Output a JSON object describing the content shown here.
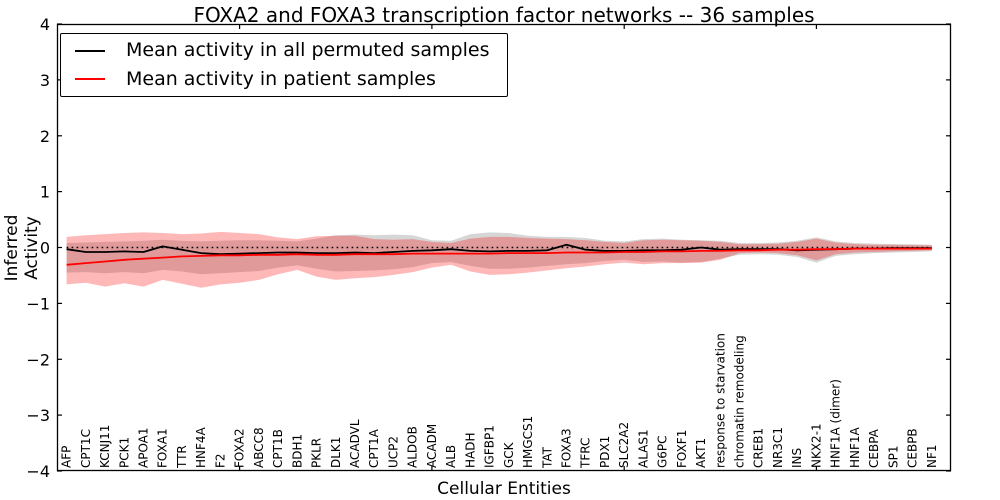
{
  "legend": {
    "items": [
      {
        "label": "Mean activity in all permuted samples",
        "color": "#000000"
      },
      {
        "label": "Mean activity in patient samples",
        "color": "#ff0000"
      }
    ]
  },
  "chart_data": {
    "type": "line",
    "title": "FOXA2 and FOXA3 transcription factor networks -- 36 samples",
    "xlabel": "Cellular Entities",
    "ylabel": "Inferred Activity",
    "ylim": [
      -4,
      4
    ],
    "yticks": [
      4,
      3,
      2,
      1,
      0,
      -1,
      -2,
      -3,
      -4
    ],
    "ytick_labels": [
      "4",
      "3",
      "2",
      "1",
      "0",
      "−1",
      "−2",
      "−3",
      "−4"
    ],
    "x_major_tick_indices": [
      9,
      19,
      29,
      39
    ],
    "grid": false,
    "legend_position": "upper left",
    "zero_reference_line": {
      "style": "dotted",
      "color": "#000000",
      "y": 0
    },
    "categories": [
      "AFP",
      "CPT1C",
      "KCNJ11",
      "PCK1",
      "APOA1",
      "FOXA1",
      "TTR",
      "HNF4A",
      "F2",
      "FOXA2",
      "ABCC8",
      "CPT1B",
      "BDH1",
      "PKLR",
      "DLK1",
      "ACADVL",
      "CPT1A",
      "UCP2",
      "ALDOB",
      "ACADM",
      "ALB",
      "HADH",
      "IGFBP1",
      "GCK",
      "HMGCS1",
      "TAT",
      "FOXA3",
      "TFRC",
      "PDX1",
      "SLC2A2",
      "ALAS1",
      "G6PC",
      "FOXF1",
      "AKT1",
      "response to starvation",
      "chromatin remodeling",
      "CREB1",
      "NR3C1",
      "INS",
      "NKX2-1",
      "HNF1A (dimer)",
      "HNF1A",
      "CEBPA",
      "SP1",
      "CEBPB",
      "NF1"
    ],
    "series": [
      {
        "name": "Mean activity in all permuted samples",
        "color": "#000000",
        "style": "solid",
        "values": [
          -0.03,
          -0.08,
          -0.08,
          -0.07,
          -0.08,
          0.02,
          -0.04,
          -0.1,
          -0.12,
          -0.11,
          -0.1,
          -0.09,
          -0.09,
          -0.1,
          -0.1,
          -0.09,
          -0.1,
          -0.08,
          -0.06,
          -0.05,
          -0.03,
          -0.06,
          -0.07,
          -0.06,
          -0.06,
          -0.05,
          0.05,
          -0.04,
          -0.06,
          -0.06,
          -0.05,
          -0.05,
          -0.04,
          0.0,
          -0.04,
          -0.03,
          -0.03,
          -0.03,
          -0.05,
          -0.04,
          -0.03,
          -0.02,
          -0.02,
          -0.01,
          -0.01,
          -0.01
        ]
      },
      {
        "name": "Mean activity in patient samples",
        "color": "#ff0000",
        "style": "solid",
        "values": [
          -0.31,
          -0.28,
          -0.25,
          -0.22,
          -0.2,
          -0.18,
          -0.16,
          -0.15,
          -0.14,
          -0.14,
          -0.13,
          -0.13,
          -0.12,
          -0.13,
          -0.13,
          -0.12,
          -0.12,
          -0.12,
          -0.11,
          -0.11,
          -0.11,
          -0.11,
          -0.11,
          -0.1,
          -0.1,
          -0.1,
          -0.09,
          -0.09,
          -0.09,
          -0.08,
          -0.08,
          -0.07,
          -0.07,
          -0.06,
          -0.06,
          -0.05,
          -0.05,
          -0.04,
          -0.04,
          -0.03,
          -0.03,
          -0.02,
          -0.02,
          -0.02,
          -0.02,
          -0.02
        ]
      }
    ],
    "bands": [
      {
        "name": "permuted samples std band",
        "color": "#808080",
        "opacity": 0.32,
        "upper": [
          0.08,
          0.09,
          0.1,
          0.11,
          0.12,
          0.14,
          0.12,
          0.11,
          0.12,
          0.13,
          0.13,
          0.12,
          0.11,
          0.16,
          0.22,
          0.23,
          0.22,
          0.23,
          0.22,
          0.13,
          0.12,
          0.24,
          0.27,
          0.26,
          0.21,
          0.19,
          0.19,
          0.17,
          0.12,
          0.11,
          0.15,
          0.16,
          0.14,
          0.13,
          0.12,
          0.08,
          0.08,
          0.09,
          0.12,
          0.18,
          0.11,
          0.08,
          0.07,
          0.06,
          0.06,
          0.05
        ],
        "lower": [
          -0.45,
          -0.44,
          -0.46,
          -0.44,
          -0.46,
          -0.4,
          -0.43,
          -0.48,
          -0.46,
          -0.44,
          -0.42,
          -0.36,
          -0.32,
          -0.38,
          -0.43,
          -0.42,
          -0.41,
          -0.39,
          -0.35,
          -0.28,
          -0.26,
          -0.33,
          -0.38,
          -0.38,
          -0.36,
          -0.33,
          -0.3,
          -0.28,
          -0.24,
          -0.22,
          -0.26,
          -0.25,
          -0.27,
          -0.26,
          -0.2,
          -0.13,
          -0.12,
          -0.13,
          -0.17,
          -0.27,
          -0.15,
          -0.12,
          -0.1,
          -0.09,
          -0.08,
          -0.07
        ]
      },
      {
        "name": "patient samples std band",
        "color": "#ff0000",
        "opacity": 0.28,
        "upper": [
          0.19,
          0.22,
          0.24,
          0.26,
          0.27,
          0.26,
          0.24,
          0.25,
          0.28,
          0.26,
          0.24,
          0.18,
          0.15,
          0.2,
          0.21,
          0.21,
          0.15,
          0.14,
          0.15,
          0.1,
          0.08,
          0.16,
          0.19,
          0.19,
          0.17,
          0.16,
          0.15,
          0.13,
          0.1,
          0.08,
          0.13,
          0.14,
          0.13,
          0.12,
          0.1,
          0.06,
          0.06,
          0.07,
          0.1,
          0.16,
          0.09,
          0.06,
          0.05,
          0.05,
          0.04,
          0.04
        ],
        "lower": [
          -0.66,
          -0.63,
          -0.7,
          -0.64,
          -0.7,
          -0.58,
          -0.65,
          -0.72,
          -0.66,
          -0.63,
          -0.58,
          -0.48,
          -0.4,
          -0.52,
          -0.58,
          -0.55,
          -0.53,
          -0.49,
          -0.44,
          -0.36,
          -0.31,
          -0.43,
          -0.49,
          -0.48,
          -0.45,
          -0.41,
          -0.37,
          -0.34,
          -0.3,
          -0.27,
          -0.3,
          -0.28,
          -0.28,
          -0.27,
          -0.22,
          -0.1,
          -0.09,
          -0.1,
          -0.14,
          -0.23,
          -0.12,
          -0.09,
          -0.08,
          -0.07,
          -0.06,
          -0.05
        ]
      }
    ]
  }
}
